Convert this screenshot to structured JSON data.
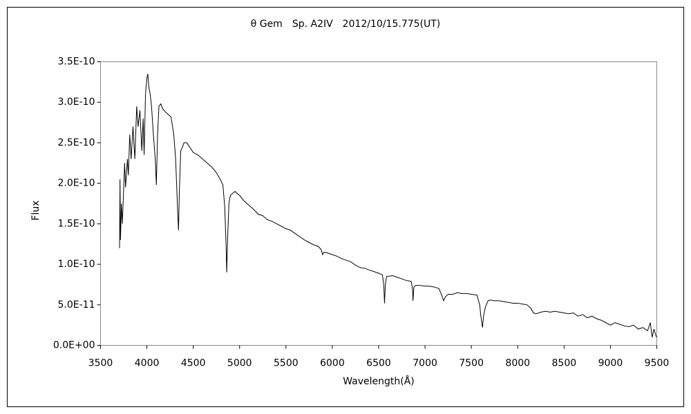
{
  "chart_data": {
    "type": "line",
    "title": "θ Gem　Sp. A2IV　2012/10/15.775(UT)",
    "x_label": "Wavelength(Å)",
    "y_label": "Flux",
    "color": "#000000",
    "x": [
      3705,
      3710,
      3715,
      3725,
      3735,
      3745,
      3760,
      3770,
      3790,
      3800,
      3815,
      3830,
      3850,
      3870,
      3890,
      3905,
      3925,
      3945,
      3960,
      3970,
      3985,
      4000,
      4010,
      4020,
      4035,
      4050,
      4070,
      4090,
      4102,
      4115,
      4130,
      4150,
      4170,
      4200,
      4230,
      4260,
      4290,
      4310,
      4330,
      4341,
      4350,
      4365,
      4385,
      4400,
      4430,
      4460,
      4500,
      4550,
      4600,
      4650,
      4700,
      4750,
      4790,
      4820,
      4840,
      4855,
      4861,
      4870,
      4885,
      4900,
      4950,
      5000,
      5050,
      5100,
      5150,
      5200,
      5250,
      5300,
      5350,
      5400,
      5450,
      5500,
      5550,
      5600,
      5650,
      5700,
      5750,
      5800,
      5850,
      5880,
      5895,
      5910,
      5950,
      6000,
      6050,
      6100,
      6150,
      6200,
      6250,
      6300,
      6350,
      6400,
      6450,
      6500,
      6540,
      6555,
      6563,
      6572,
      6585,
      6650,
      6700,
      6750,
      6800,
      6850,
      6865,
      6870,
      6880,
      6900,
      6950,
      7000,
      7050,
      7100,
      7150,
      7180,
      7200,
      7220,
      7250,
      7300,
      7350,
      7400,
      7450,
      7500,
      7560,
      7590,
      7600,
      7610,
      7620,
      7630,
      7650,
      7680,
      7700,
      7750,
      7800,
      7850,
      7900,
      7950,
      8000,
      8050,
      8100,
      8140,
      8170,
      8200,
      8250,
      8300,
      8350,
      8400,
      8450,
      8500,
      8550,
      8600,
      8650,
      8700,
      8750,
      8800,
      8850,
      8900,
      8950,
      9000,
      9050,
      9100,
      9150,
      9200,
      9250,
      9300,
      9350,
      9400,
      9430,
      9450,
      9470,
      9490,
      9500
    ],
    "values": [
      1.2e-10,
      2.05e-10,
      1.3e-10,
      1.75e-10,
      1.5e-10,
      1.8e-10,
      2.25e-10,
      1.95e-10,
      2.3e-10,
      2.1e-10,
      2.6e-10,
      2.3e-10,
      2.7e-10,
      2.3e-10,
      2.95e-10,
      2.7e-10,
      2.9e-10,
      2.4e-10,
      2.8e-10,
      2.35e-10,
      3.1e-10,
      3.3e-10,
      3.35e-10,
      3.2e-10,
      3.1e-10,
      2.95e-10,
      2.6e-10,
      2.3e-10,
      1.98e-10,
      2.6e-10,
      2.95e-10,
      2.98e-10,
      2.92e-10,
      2.88e-10,
      2.85e-10,
      2.82e-10,
      2.6e-10,
      2.3e-10,
      1.7e-10,
      1.42e-10,
      1.9e-10,
      2.4e-10,
      2.45e-10,
      2.5e-10,
      2.5e-10,
      2.45e-10,
      2.38e-10,
      2.35e-10,
      2.3e-10,
      2.25e-10,
      2.2e-10,
      2.13e-10,
      2.05e-10,
      1.98e-10,
      1.7e-10,
      1.2e-10,
      9e-11,
      1.3e-10,
      1.75e-10,
      1.85e-10,
      1.9e-10,
      1.85e-10,
      1.78e-10,
      1.73e-10,
      1.68e-10,
      1.62e-10,
      1.6e-10,
      1.55e-10,
      1.53e-10,
      1.5e-10,
      1.47e-10,
      1.44e-10,
      1.42e-10,
      1.38e-10,
      1.34e-10,
      1.3e-10,
      1.27e-10,
      1.24e-10,
      1.22e-10,
      1.18e-10,
      1.12e-10,
      1.15e-10,
      1.14e-10,
      1.12e-10,
      1.1e-10,
      1.07e-10,
      1.05e-10,
      1.03e-10,
      9.9e-11,
      9.6e-11,
      9.5e-11,
      9.3e-11,
      9.1e-11,
      8.9e-11,
      8.7e-11,
      7.5e-11,
      5.2e-11,
      7.5e-11,
      8.5e-11,
      8.6e-11,
      8.4e-11,
      8.2e-11,
      8e-11,
      7.9e-11,
      7e-11,
      5.5e-11,
      7.2e-11,
      7.4e-11,
      7.4e-11,
      7.3e-11,
      7.3e-11,
      7.2e-11,
      7e-11,
      6.2e-11,
      5.5e-11,
      6e-11,
      6.3e-11,
      6.3e-11,
      6.5e-11,
      6.4e-11,
      6.4e-11,
      6.3e-11,
      6.2e-11,
      5e-11,
      3.8e-11,
      3e-11,
      2.2e-11,
      3.5e-11,
      4.7e-11,
      5.5e-11,
      5.6e-11,
      5.5e-11,
      5.5e-11,
      5.4e-11,
      5.3e-11,
      5.2e-11,
      5.2e-11,
      5.1e-11,
      5e-11,
      4.6e-11,
      4e-11,
      3.9e-11,
      4.1e-11,
      4.2e-11,
      4.1e-11,
      4.2e-11,
      4.1e-11,
      4e-11,
      3.9e-11,
      4e-11,
      3.6e-11,
      3.8e-11,
      3.4e-11,
      3.6e-11,
      3.3e-11,
      3.1e-11,
      2.8e-11,
      2.5e-11,
      2.8e-11,
      2.6e-11,
      2.4e-11,
      2.3e-11,
      2.5e-11,
      2e-11,
      2.2e-11,
      1.8e-11,
      2.8e-11,
      1e-11,
      2e-11,
      1.2e-11,
      1e-11
    ],
    "xlim": [
      3500,
      9500
    ],
    "xticks": [
      3500,
      4000,
      4500,
      5000,
      5500,
      6000,
      6500,
      7000,
      7500,
      8000,
      8500,
      9000,
      9500
    ],
    "ylim": [
      0,
      3.5e-10
    ],
    "yticks": [
      {
        "value": 0,
        "label": "0.0E+00"
      },
      {
        "value": 5e-11,
        "label": "5.0E-11"
      },
      {
        "value": 1e-10,
        "label": "1.0E-10"
      },
      {
        "value": 1.5e-10,
        "label": "1.5E-10"
      },
      {
        "value": 2e-10,
        "label": "2.0E-10"
      },
      {
        "value": 2.5e-10,
        "label": "2.5E-10"
      },
      {
        "value": 3e-10,
        "label": "3.0E-10"
      },
      {
        "value": 3.5e-10,
        "label": "3.5E-10"
      }
    ],
    "grid": false
  }
}
